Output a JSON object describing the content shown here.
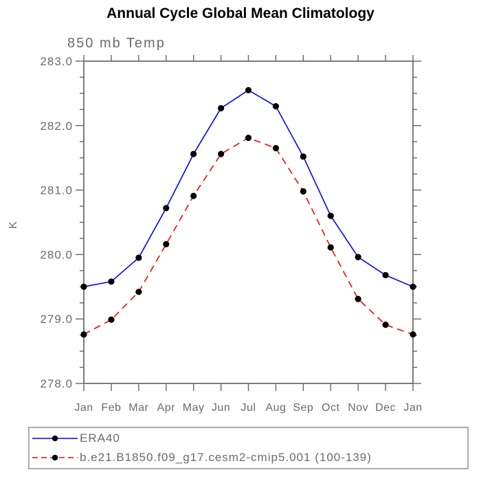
{
  "header": {
    "title": "Annual Cycle Global Mean Climatology",
    "subtitle": "850 mb Temp"
  },
  "chart_data": {
    "type": "line",
    "title": "Annual Cycle Global Mean Climatology",
    "subtitle": "850 mb Temp",
    "ylabel": "K",
    "xlabel": "",
    "x_categories": [
      "Jan",
      "Feb",
      "Mar",
      "Apr",
      "May",
      "Jun",
      "Jul",
      "Aug",
      "Sep",
      "Oct",
      "Nov",
      "Dec",
      "Jan"
    ],
    "ylim": [
      278.0,
      283.0
    ],
    "ytick_labels": [
      "283.0",
      "282.0",
      "281.0",
      "280.0",
      "279.0",
      "278.0"
    ],
    "ytick_step": 1.0,
    "minor_tick_step": 0.25,
    "grid": false,
    "legend_position": "bottom-left-boxed",
    "series": [
      {
        "name": "ERA40",
        "color": "#0000ff",
        "line_style": "solid",
        "marker": "filled-circle",
        "marker_color": "#000000",
        "values": [
          279.5,
          279.58,
          279.95,
          280.72,
          281.56,
          282.27,
          282.55,
          282.3,
          281.52,
          280.6,
          279.96,
          279.68,
          279.5
        ]
      },
      {
        "name": "b.e21.B1850.f09_g17.cesm2-cmip5.001 (100-139)",
        "color": "#ff0000",
        "line_style": "dashed",
        "marker": "filled-circle",
        "marker_color": "#000000",
        "values": [
          278.76,
          278.99,
          279.42,
          280.16,
          280.91,
          281.56,
          281.81,
          281.65,
          280.98,
          280.11,
          279.31,
          278.91,
          278.76
        ]
      }
    ]
  },
  "colors": {
    "axis": "#666666",
    "tick_text": "#6b6b6b",
    "title_text": "#000000",
    "legend_border": "#ababab",
    "marker": "#000000"
  }
}
